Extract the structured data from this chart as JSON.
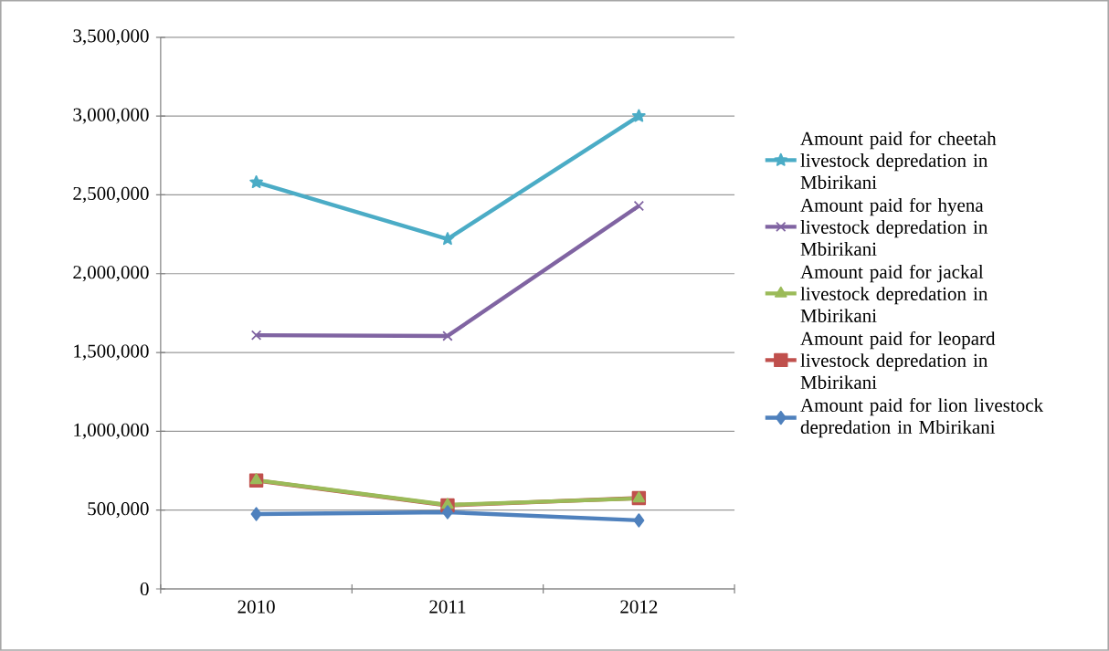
{
  "chart_data": {
    "type": "line",
    "categories": [
      "2010",
      "2011",
      "2012"
    ],
    "series": [
      {
        "name": "Amount paid for cheetah livestock depredation in Mbirikani",
        "color": "#4bacc6",
        "marker": "star",
        "values": [
          2580000,
          2220000,
          3000000
        ]
      },
      {
        "name": "Amount paid for hyena livestock depredation in Mbirikani",
        "color": "#8064a2",
        "marker": "cross",
        "values": [
          1610000,
          1605000,
          2430000
        ]
      },
      {
        "name": "Amount paid for jackal livestock depredation in Mbirikani",
        "color": "#9bbb59",
        "marker": "triangle",
        "values": [
          690000,
          533000,
          574000
        ]
      },
      {
        "name": "Amount paid for leopard livestock depredation in Mbirikani",
        "color": "#c0504d",
        "marker": "square",
        "values": [
          688000,
          530000,
          576000
        ]
      },
      {
        "name": "Amount paid for lion livestock depredation in Mbirikani",
        "color": "#4f81bd",
        "marker": "diamond",
        "values": [
          475000,
          487000,
          435000
        ]
      }
    ],
    "ylim": [
      0,
      3500000
    ],
    "yticks": [
      0,
      {
        "value": 500000,
        "label": "500,000"
      },
      {
        "value": 1000000,
        "label": "1,000,000"
      },
      {
        "value": 1500000,
        "label": "1,500,000"
      },
      {
        "value": 2000000,
        "label": "2,000,000"
      },
      {
        "value": 2500000,
        "label": "2,500,000"
      },
      {
        "value": 3000000,
        "label": "3,000,000"
      },
      {
        "value": 3500000,
        "label": "3,500,000"
      }
    ],
    "grid": "y",
    "legend": "right",
    "line_style": "solid"
  }
}
